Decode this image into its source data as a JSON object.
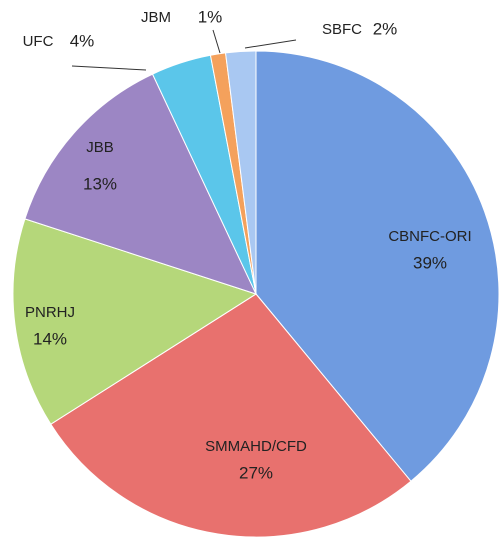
{
  "chart_data": {
    "type": "pie",
    "categories": [
      "CBNFC-ORI",
      "SMMAHD/CFD",
      "PNRHJ",
      "JBB",
      "UFC",
      "JBM",
      "SBFC"
    ],
    "values": [
      39,
      27,
      14,
      13,
      4,
      1,
      2
    ],
    "value_labels": [
      "39%",
      "27%",
      "14%",
      "13%",
      "4%",
      "1%",
      "2%"
    ],
    "colors": [
      "#6f9be0",
      "#e8716e",
      "#b5d77a",
      "#9c86c4",
      "#5bc6ea",
      "#f4a15c",
      "#a9c8f2"
    ]
  }
}
